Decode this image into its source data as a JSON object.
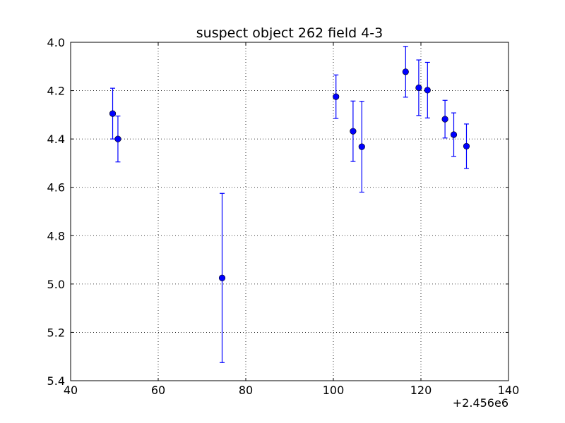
{
  "chart_data": {
    "type": "scatter",
    "title": "suspect object 262 field 4-3",
    "xlabel": "",
    "ylabel": "",
    "x_offset_label": "+2.456e6",
    "xlim": [
      40,
      140
    ],
    "ylim": [
      4.0,
      5.4
    ],
    "y_inverted": true,
    "grid": true,
    "x_ticks": [
      "40",
      "60",
      "80",
      "100",
      "120",
      "140"
    ],
    "y_ticks": [
      "4.0",
      "4.2",
      "4.4",
      "4.6",
      "4.8",
      "5.0",
      "5.2",
      "5.4"
    ],
    "series": [
      {
        "color": "#0000ff",
        "marker": "circle",
        "error_bars": true,
        "points": [
          {
            "x": 49.6,
            "y": 4.295,
            "yerr": 0.105
          },
          {
            "x": 50.8,
            "y": 4.4,
            "yerr": 0.095
          },
          {
            "x": 74.6,
            "y": 4.975,
            "yerr": 0.35
          },
          {
            "x": 100.6,
            "y": 4.225,
            "yerr": 0.09
          },
          {
            "x": 104.5,
            "y": 4.368,
            "yerr": 0.125
          },
          {
            "x": 106.5,
            "y": 4.432,
            "yerr": 0.188
          },
          {
            "x": 116.5,
            "y": 4.122,
            "yerr": 0.105
          },
          {
            "x": 119.5,
            "y": 4.188,
            "yerr": 0.115
          },
          {
            "x": 121.5,
            "y": 4.198,
            "yerr": 0.115
          },
          {
            "x": 125.5,
            "y": 4.318,
            "yerr": 0.078
          },
          {
            "x": 127.5,
            "y": 4.382,
            "yerr": 0.09
          },
          {
            "x": 130.4,
            "y": 4.43,
            "yerr": 0.092
          }
        ]
      }
    ]
  }
}
